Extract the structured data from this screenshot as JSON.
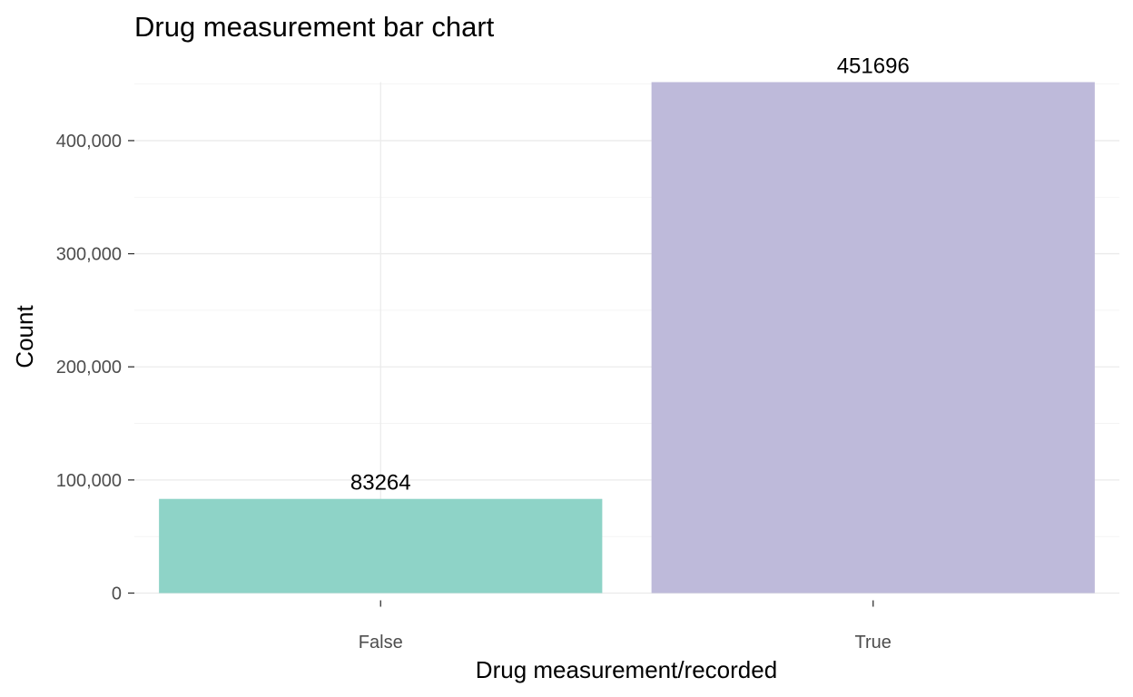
{
  "chart_data": {
    "type": "bar",
    "title": "Drug measurement bar chart",
    "xlabel": "Drug measurement/recorded",
    "ylabel": "Count",
    "categories": [
      "False",
      "True"
    ],
    "values": [
      83264,
      451696
    ],
    "data_labels": [
      "83264",
      "451696"
    ],
    "colors": [
      "#8ed3c7",
      "#bebada"
    ],
    "ylim": [
      0,
      451696
    ],
    "y_ticks": [
      0,
      100000,
      200000,
      300000,
      400000
    ],
    "y_tick_labels": [
      "0",
      "100,000",
      "200,000",
      "300,000",
      "400,000"
    ],
    "grid": true,
    "legend": "none"
  }
}
